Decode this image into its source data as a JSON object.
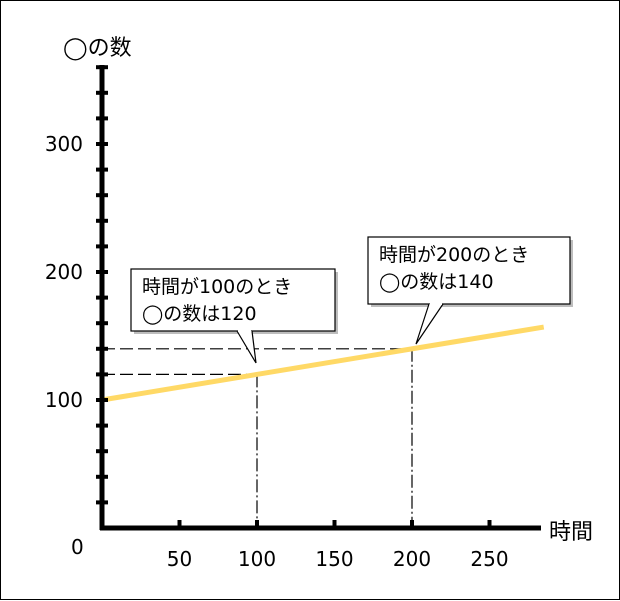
{
  "chart_data": {
    "type": "line",
    "title": "",
    "xlabel": "時間",
    "ylabel": "◯の数",
    "xlim": [
      0,
      280
    ],
    "ylim": [
      0,
      360
    ],
    "x_ticks": [
      50,
      100,
      150,
      200,
      250
    ],
    "y_ticks": [
      100,
      200,
      300
    ],
    "origin_label": "0",
    "minor_y_step": 20,
    "grid": false,
    "legend": "none",
    "series": [
      {
        "values": [
          [
            0,
            100
          ],
          [
            285,
            157
          ]
        ],
        "color": "#ffd966"
      }
    ],
    "guides": [
      {
        "x": 100,
        "y": 120
      },
      {
        "x": 200,
        "y": 140
      }
    ],
    "annotations": [
      {
        "line1": "時間が100のとき",
        "line2": "◯の数は120",
        "point": [
          100,
          120
        ]
      },
      {
        "line1": "時間が200のとき",
        "line2": "◯の数は140",
        "point": [
          200,
          140
        ]
      }
    ]
  }
}
